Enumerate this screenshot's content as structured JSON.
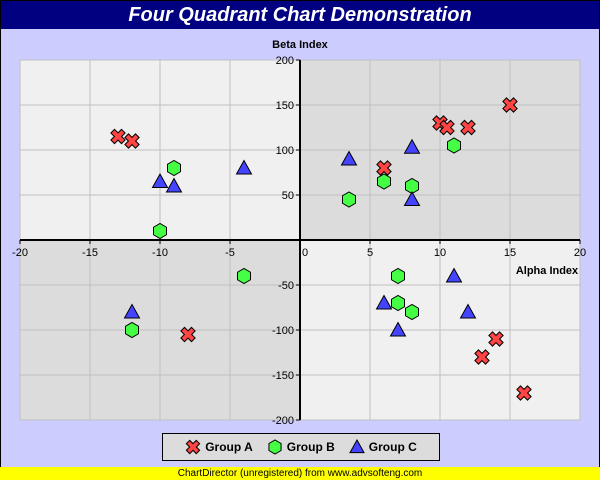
{
  "header": {
    "title": "Four Quadrant Chart Demonstration"
  },
  "footer": {
    "text": "ChartDirector (unregistered) from www.advsofteng.com"
  },
  "colors": {
    "background": "#ccccff",
    "title_bar": "#000080",
    "quadrant_light": "#f0f0f0",
    "quadrant_dark": "#dcdcdc",
    "group_a": "#ff4444",
    "group_b": "#44ff44",
    "group_c": "#4444ff",
    "footer": "#ffff00"
  },
  "chart_data": {
    "type": "scatter",
    "title": "Four Quadrant Chart Demonstration",
    "xlabel": "Alpha Index",
    "ylabel": "Beta Index",
    "xlim": [
      -20,
      20
    ],
    "ylim": [
      -200,
      200
    ],
    "xticks": [
      -20,
      -15,
      -10,
      -5,
      0,
      5,
      10,
      15,
      20
    ],
    "yticks": [
      -200,
      -150,
      -100,
      -50,
      50,
      100,
      150,
      200
    ],
    "grid": true,
    "legend_position": "bottom",
    "series": [
      {
        "name": "Group A",
        "marker": "cross",
        "color": "#ff4444",
        "points": [
          {
            "x": -13,
            "y": 115
          },
          {
            "x": -12,
            "y": 110
          },
          {
            "x": -8,
            "y": -105
          },
          {
            "x": 6,
            "y": 80
          },
          {
            "x": 10,
            "y": 130
          },
          {
            "x": 10.5,
            "y": 125
          },
          {
            "x": 12,
            "y": 125
          },
          {
            "x": 15,
            "y": 150
          },
          {
            "x": 13,
            "y": -130
          },
          {
            "x": 14,
            "y": -110
          },
          {
            "x": 16,
            "y": -170
          }
        ]
      },
      {
        "name": "Group B",
        "marker": "hexagon",
        "color": "#44ff44",
        "points": [
          {
            "x": -9,
            "y": 80
          },
          {
            "x": -10,
            "y": 10
          },
          {
            "x": -4,
            "y": -40
          },
          {
            "x": -12,
            "y": -100
          },
          {
            "x": 3.5,
            "y": 45
          },
          {
            "x": 6,
            "y": 65
          },
          {
            "x": 8,
            "y": 60
          },
          {
            "x": 11,
            "y": 105
          },
          {
            "x": 7,
            "y": -40
          },
          {
            "x": 7,
            "y": -70
          },
          {
            "x": 8,
            "y": -80
          }
        ]
      },
      {
        "name": "Group C",
        "marker": "triangle",
        "color": "#4444ff",
        "points": [
          {
            "x": -10,
            "y": 65
          },
          {
            "x": -9,
            "y": 60
          },
          {
            "x": -4,
            "y": 80
          },
          {
            "x": -12,
            "y": -80
          },
          {
            "x": 3.5,
            "y": 90
          },
          {
            "x": 8,
            "y": 103
          },
          {
            "x": 8,
            "y": 45
          },
          {
            "x": 6,
            "y": -70
          },
          {
            "x": 7,
            "y": -100
          },
          {
            "x": 11,
            "y": -40
          },
          {
            "x": 12,
            "y": -80
          }
        ]
      }
    ]
  }
}
